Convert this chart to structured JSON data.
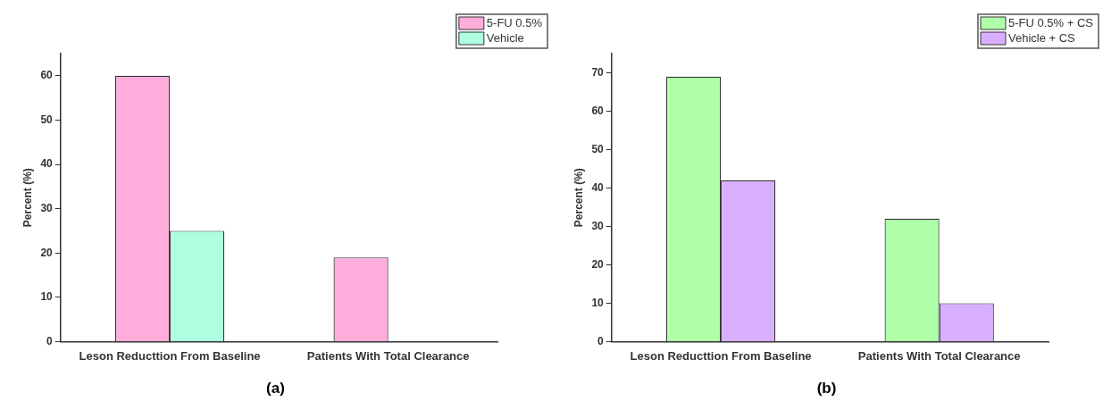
{
  "chart_data": [
    {
      "type": "bar",
      "title": "(a)",
      "ylabel": "Percent (%)",
      "categories": [
        "Leson Reducttion From Baseline",
        "Patients With Total Clearance"
      ],
      "series": [
        {
          "name": "5-FU 0.5%",
          "color": "#ffaedb",
          "values": [
            60,
            19
          ]
        },
        {
          "name": "Vehicle",
          "color": "#adffe0",
          "values": [
            25,
            0
          ]
        }
      ],
      "ylim": [
        0,
        65
      ],
      "yticks": [
        0,
        10,
        20,
        30,
        40,
        50,
        60
      ],
      "grid": false,
      "legend": "top right"
    },
    {
      "type": "bar",
      "title": "(b)",
      "ylabel": "Percent (%)",
      "categories": [
        "Leson Reducttion From Baseline",
        "Patients With Total Clearance"
      ],
      "series": [
        {
          "name": "5-FU 0.5% + CS",
          "color": "#aeffa8",
          "values": [
            69,
            32
          ]
        },
        {
          "name": "Vehicle + CS",
          "color": "#d8aeff",
          "values": [
            42,
            10
          ]
        }
      ],
      "ylim": [
        0,
        75
      ],
      "yticks": [
        0,
        10,
        20,
        30,
        40,
        50,
        60,
        70
      ],
      "grid": false,
      "legend": "top right"
    }
  ]
}
